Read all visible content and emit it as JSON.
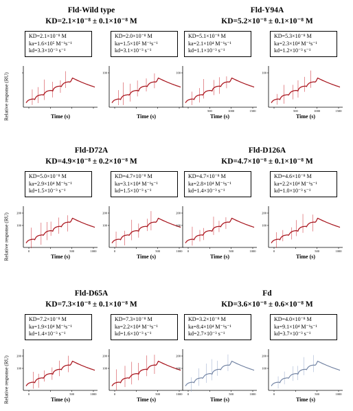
{
  "ylabel": "Relative response (RU)",
  "xlabel": "Time (s)",
  "groups": [
    {
      "title": "Fld-Wild type",
      "kd": "KD=2.1×10⁻⁸ ± 0.1×10⁻⁸ M"
    },
    {
      "title": "Fld-Y94A",
      "kd": "KD=5.2×10⁻⁸ ± 0.1×10⁻⁸ M"
    },
    {
      "title": "Fld-D72A",
      "kd": "KD=4.9×10⁻⁸ ± 0.2×10⁻⁸ M"
    },
    {
      "title": "Fld-D126A",
      "kd": "KD=4.7×10⁻⁸ ± 0.1×10⁻⁸ M"
    },
    {
      "title": "Fld-D65A",
      "kd": "KD=7.3×10⁻⁸ ± 0.1×10⁻⁸ M"
    },
    {
      "title": "Fd",
      "kd": "KD=3.6×10⁻⁸ ± 0.6×10⁻⁸ M"
    }
  ],
  "chart_data": [
    {
      "type": "line",
      "group": "Fld-Wild type",
      "box": [
        "KD=2.1×10⁻⁸ M",
        "ka=1.6×10⁵ M⁻¹s⁻¹",
        "kd=3.3×10⁻³ s⁻¹"
      ],
      "color": "#c8141e",
      "xticks": [
        "",
        "",
        "",
        ""
      ],
      "yticks": [
        ""
      ]
    },
    {
      "type": "line",
      "group": "Fld-Wild type",
      "box": [
        "KD=2.0×10⁻⁸ M",
        "ka=1.5×10⁵ M⁻¹s⁻¹",
        "kd=3.1×10⁻³ s⁻¹"
      ],
      "color": "#c8141e",
      "xticks": [
        "",
        "",
        "",
        ""
      ],
      "yticks": [
        "100"
      ]
    },
    {
      "type": "line",
      "group": "Fld-Y94A",
      "box": [
        "KD=5.1×10⁻⁸ M",
        "ka=2.1×10⁴ M⁻¹s⁻¹",
        "kd=1.1×10⁻³ s⁻¹"
      ],
      "color": "#c8141e",
      "xticks": [
        "",
        "500",
        "1000",
        "1500"
      ],
      "yticks": [
        "100"
      ]
    },
    {
      "type": "line",
      "group": "Fld-Y94A",
      "box": [
        "KD=5.3×10⁻⁸ M",
        "ka=2.3×10⁴ M⁻¹s⁻¹",
        "kd=1.2×10⁻³ s⁻¹"
      ],
      "color": "#c8141e",
      "xticks": [
        "",
        "500",
        "1000",
        "1500"
      ],
      "yticks": [
        "100"
      ]
    },
    {
      "type": "line",
      "group": "Fld-D72A",
      "box": [
        "KD=5.0×10⁻⁸ M",
        "ka=2.9×10⁴ M⁻¹s⁻¹",
        "kd=1.5×10⁻³ s⁻¹"
      ],
      "color": "#c8141e",
      "xticks": [
        "0",
        "",
        "500",
        "1000"
      ],
      "yticks": [
        "200",
        "100"
      ]
    },
    {
      "type": "line",
      "group": "Fld-D72A",
      "box": [
        "KD=4.7×10⁻⁸ M",
        "ka=3.1×10⁴ M⁻¹s⁻¹",
        "kd=1.5×10⁻³ s⁻¹"
      ],
      "color": "#c8141e",
      "xticks": [
        "0",
        "",
        "500",
        "1000"
      ],
      "yticks": [
        "200",
        "100"
      ]
    },
    {
      "type": "line",
      "group": "Fld-D126A",
      "box": [
        "KD=4.7×10⁻⁸ M",
        "ka=2.8×10⁴ M⁻¹s⁻¹",
        "kd=1.4×10⁻³ s⁻¹"
      ],
      "color": "#c8141e",
      "xticks": [
        "0",
        "",
        "500",
        "1000"
      ],
      "yticks": [
        "200",
        "100"
      ]
    },
    {
      "type": "line",
      "group": "Fld-D126A",
      "box": [
        "KD=4.6×10⁻⁸ M",
        "ka=2.2×10⁴ M⁻¹s⁻¹",
        "kd=1.0×10⁻³ s⁻¹"
      ],
      "color": "#c8141e",
      "xticks": [
        "0",
        "",
        "500",
        "1000"
      ],
      "yticks": [
        "200",
        "100"
      ]
    },
    {
      "type": "line",
      "group": "Fld-D65A",
      "box": [
        "KD=7.2×10⁻⁸ M",
        "ka=1.9×10⁴ M⁻¹s⁻¹",
        "kd=1.4×10⁻³ s⁻¹"
      ],
      "color": "#c8141e",
      "xticks": [
        "0",
        "",
        "500",
        "1000"
      ],
      "yticks": [
        "200",
        "100"
      ]
    },
    {
      "type": "line",
      "group": "Fld-D65A",
      "box": [
        "KD=7.3×10⁻⁸ M",
        "ka=2.2×10⁴ M⁻¹s⁻¹",
        "kd=1.6×10⁻³ s⁻¹"
      ],
      "color": "#c8141e",
      "xticks": [
        "0",
        "",
        "500",
        "1000"
      ],
      "yticks": [
        "200",
        "100"
      ]
    },
    {
      "type": "line",
      "group": "Fd",
      "box": [
        "KD=3.2×10⁻⁸ M",
        "ka=8.4×10⁴ M⁻¹s⁻¹",
        "kd=2.7×10⁻³ s⁻¹"
      ],
      "color": "#8fa3c8",
      "xticks": [
        "0",
        "",
        "500",
        "1000"
      ],
      "yticks": [
        "200",
        "100"
      ]
    },
    {
      "type": "line",
      "group": "Fd",
      "box": [
        "KD=4.0×10⁻⁸ M",
        "ka=9.1×10⁴ M⁻¹s⁻¹",
        "kd=3.7×10⁻³ s⁻¹"
      ],
      "color": "#8fa3c8",
      "xticks": [
        "0",
        "",
        "500",
        "1000"
      ],
      "yticks": [
        "200",
        "100"
      ]
    }
  ]
}
